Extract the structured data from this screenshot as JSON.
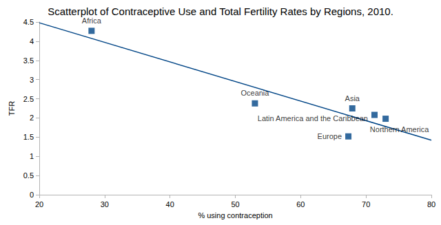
{
  "chart_data": {
    "type": "scatter",
    "title": "Scatterplot of Contraceptive Use and Total Fertility Rates by Regions, 2010.",
    "x_label": "% using contraception",
    "y_label": "TFR",
    "xlim": [
      20,
      80
    ],
    "xticks": [
      20,
      30,
      40,
      50,
      60,
      70,
      80
    ],
    "ylim": [
      0,
      4.5
    ],
    "yticks": [
      0,
      0.5,
      1,
      1.5,
      2,
      2.5,
      3,
      3.5,
      4,
      4.5
    ],
    "grid": false,
    "series": [
      {
        "type": "scatter",
        "color": "#004586",
        "marker": "square",
        "x": [
          28,
          53,
          67.9,
          71.3,
          73,
          67.3
        ],
        "values": [
          4.27,
          2.38,
          2.25,
          2.08,
          1.98,
          1.52
        ],
        "labels": [
          "Africa",
          "Oceania",
          "Asia",
          "Latin America and the Caribbean",
          "Northern America",
          "Europe"
        ]
      },
      {
        "type": "line",
        "color": "#004586",
        "line_style": "solid",
        "x": [
          20,
          80
        ],
        "values": [
          4.48,
          1.42
        ]
      }
    ]
  }
}
